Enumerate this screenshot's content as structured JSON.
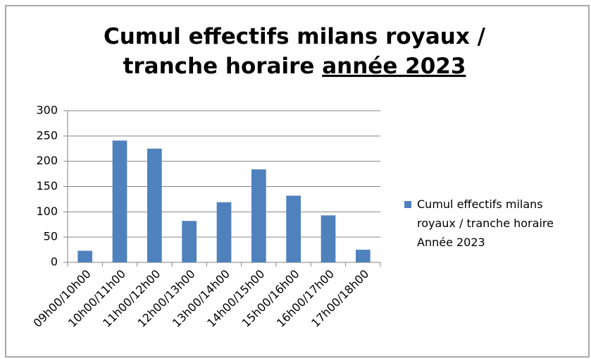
{
  "chart_data": {
    "type": "bar",
    "title": [
      "Cumul effectifs milans royaux /",
      "tranche horaire",
      "année 2023"
    ],
    "categories": [
      "09h00/10h00",
      "10h00/11h00",
      "11h00/12h00",
      "12h00/13h00",
      "13h00/14h00",
      "14h00/15h00",
      "15h00/16h00",
      "16h00/17h00",
      "17h00/18h00"
    ],
    "series": [
      {
        "name": "Cumul effectifs milans royaux / tranche horaire Année 2023",
        "color": "#4f81bd",
        "values": [
          23,
          241,
          225,
          82,
          119,
          184,
          132,
          93,
          25
        ]
      }
    ],
    "ylim": [
      0,
      300
    ],
    "yticks": [
      0,
      50,
      100,
      150,
      200,
      250,
      300
    ],
    "grid": true,
    "legend": "right"
  }
}
